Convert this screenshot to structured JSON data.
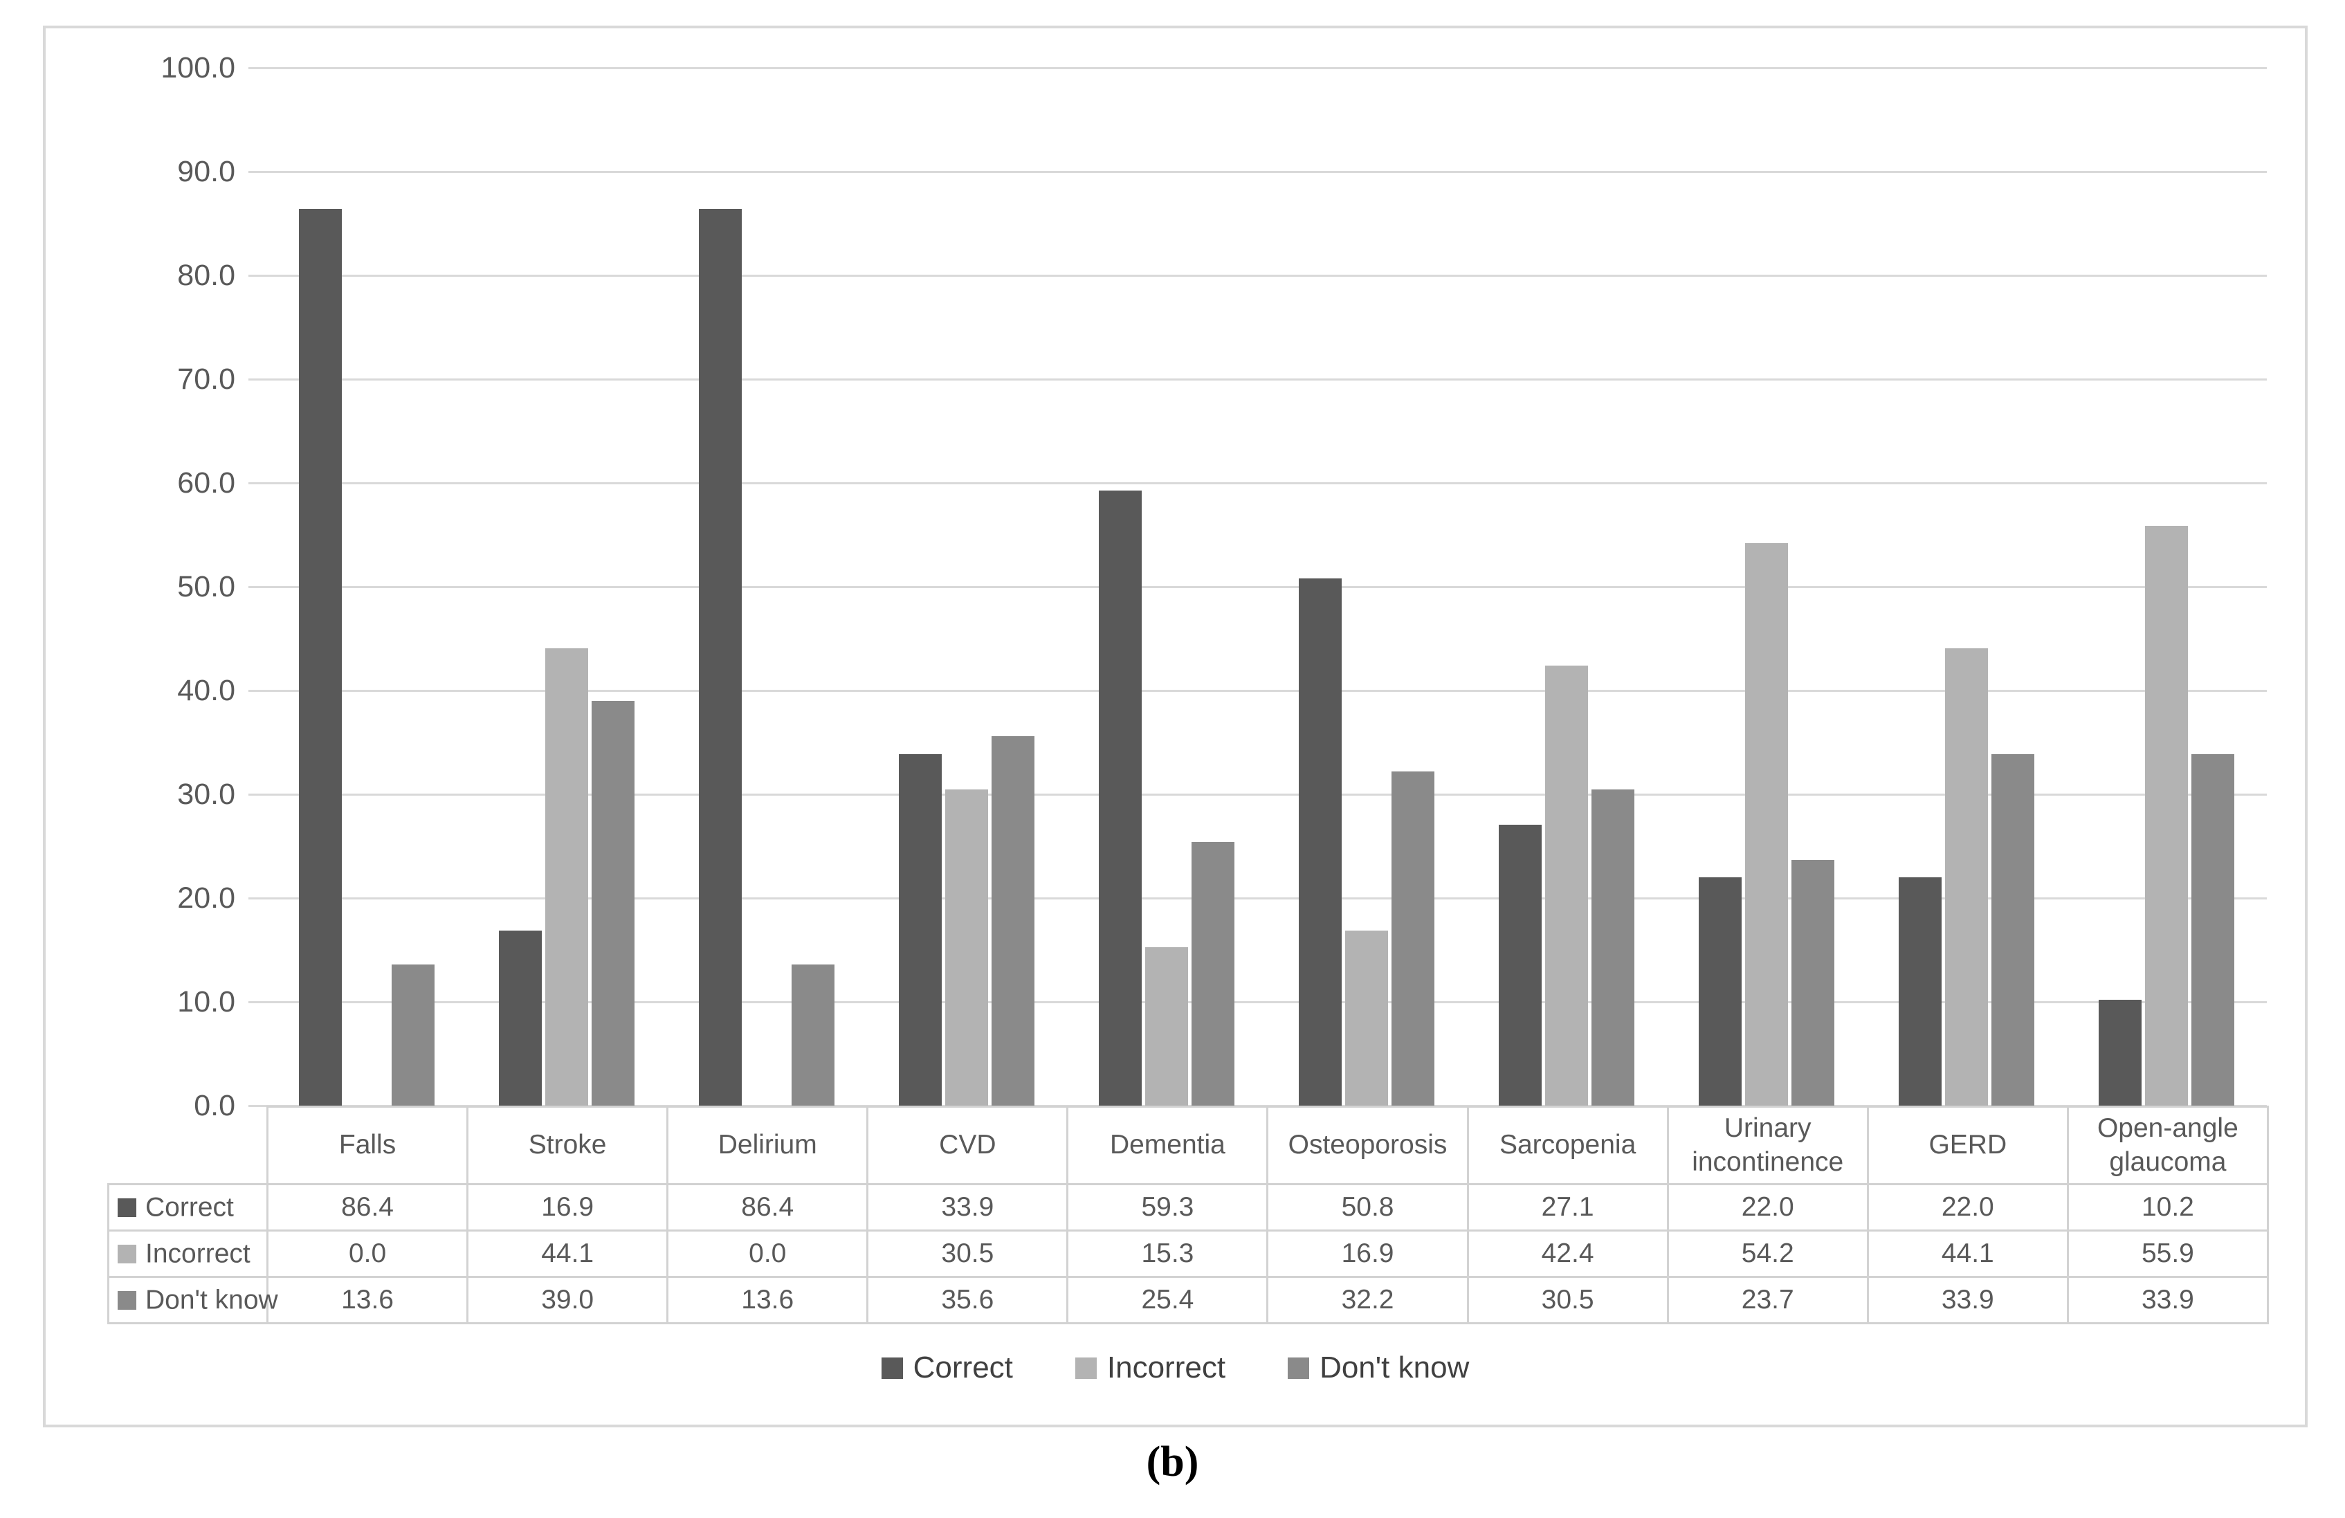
{
  "figure": {
    "caption": "(b)"
  },
  "colors": {
    "correct": "#595959",
    "incorrect": "#b3b3b3",
    "dont_know": "#8a8a8a",
    "gridline": "#d9d9d9",
    "table_border": "#d2d2d2",
    "axis_text": "#595959",
    "legend_text": "#404040"
  },
  "chart_data": {
    "type": "bar",
    "title": "",
    "xlabel": "",
    "ylabel": "",
    "categories": [
      "Falls",
      "Stroke",
      "Delirium",
      "CVD",
      "Dementia",
      "Osteoporosis",
      "Sarcopenia",
      "Urinary incontinence",
      "GERD",
      "Open-angle glaucoma"
    ],
    "series": [
      {
        "name": "Correct",
        "color": "#595959",
        "values": [
          86.4,
          16.9,
          86.4,
          33.9,
          59.3,
          50.8,
          27.1,
          22.0,
          22.0,
          10.2
        ]
      },
      {
        "name": "Incorrect",
        "color": "#b3b3b3",
        "values": [
          0.0,
          44.1,
          0.0,
          30.5,
          15.3,
          16.9,
          42.4,
          54.2,
          44.1,
          55.9
        ]
      },
      {
        "name": "Don't know",
        "color": "#8a8a8a",
        "values": [
          13.6,
          39.0,
          13.6,
          35.6,
          25.4,
          32.2,
          30.5,
          23.7,
          33.9,
          33.9
        ]
      }
    ],
    "ylim": [
      0,
      100
    ],
    "ytick_step": 10,
    "ytick_labels": [
      "0.0",
      "10.0",
      "20.0",
      "30.0",
      "40.0",
      "50.0",
      "60.0",
      "70.0",
      "80.0",
      "90.0",
      "100.0"
    ],
    "grid": true,
    "legend_position": "bottom",
    "data_table_shown": true,
    "value_format_decimals": 1
  },
  "legend": {
    "items": [
      "Correct",
      "Incorrect",
      "Don't know"
    ]
  }
}
